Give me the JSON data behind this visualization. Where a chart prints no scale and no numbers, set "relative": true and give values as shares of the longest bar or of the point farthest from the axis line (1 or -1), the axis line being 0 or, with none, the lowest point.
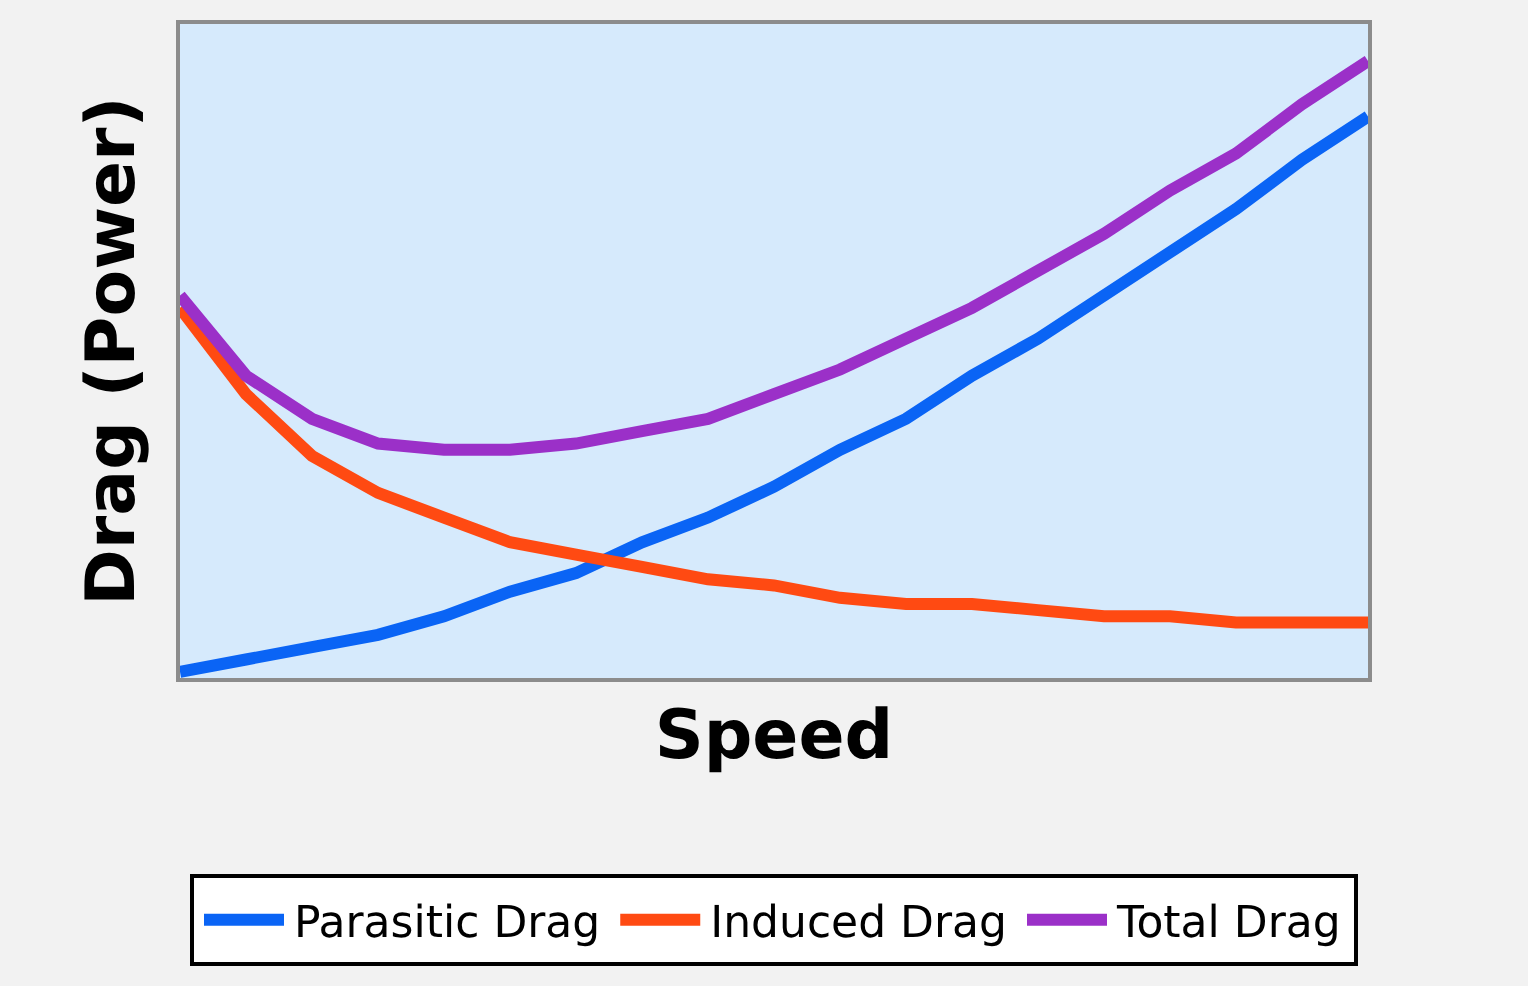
{
  "chart_data": {
    "type": "line",
    "relative": true,
    "xlabel": "Speed",
    "ylabel": "Drag (Power)",
    "legend": "bottom",
    "grid": false,
    "marker": "none",
    "line_style": "solid",
    "categories": [
      null,
      null,
      null,
      null,
      null,
      null,
      null,
      null,
      null,
      null,
      null,
      null,
      null,
      null,
      null,
      null,
      null,
      null,
      null
    ],
    "series": [
      {
        "name": "Parasitic Drag",
        "color": "#0a64f5",
        "values": [
          0.01,
          0.03,
          0.05,
          0.07,
          0.1,
          0.14,
          0.17,
          0.22,
          0.26,
          0.31,
          0.37,
          0.42,
          0.49,
          0.55,
          0.62,
          0.69,
          0.76,
          0.84,
          0.91
        ]
      },
      {
        "name": "Induced Drag",
        "color": "#ff4a12",
        "values": [
          0.6,
          0.46,
          0.36,
          0.3,
          0.26,
          0.22,
          0.2,
          0.18,
          0.16,
          0.15,
          0.13,
          0.12,
          0.12,
          0.11,
          0.1,
          0.1,
          0.09,
          0.09,
          0.09
        ]
      },
      {
        "name": "Total Drag",
        "color": "#9b30c8",
        "values": [
          0.62,
          0.49,
          0.42,
          0.38,
          0.37,
          0.37,
          0.38,
          0.4,
          0.42,
          0.46,
          0.5,
          0.55,
          0.6,
          0.66,
          0.72,
          0.79,
          0.85,
          0.93,
          1.0
        ]
      }
    ]
  }
}
